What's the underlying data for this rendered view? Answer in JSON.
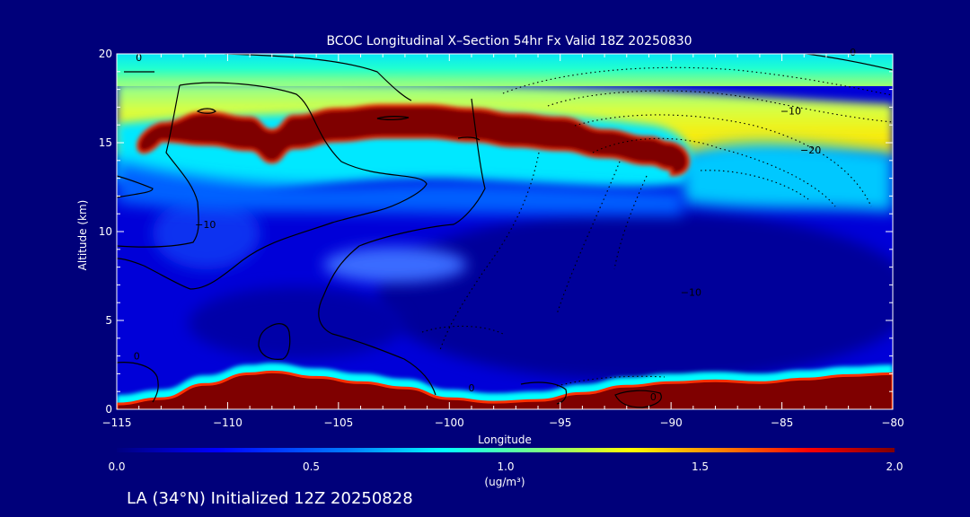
{
  "figure": {
    "title": "BCOC Longitudinal X–Section 54hr  Fx Valid 18Z 20250830",
    "footer": "LA (34°N) Initialized 12Z 20250828"
  },
  "chart_data": {
    "type": "heatmap",
    "title": "BCOC Longitudinal X–Section 54hr  Fx Valid 18Z 20250830",
    "xlabel": "Longitude",
    "ylabel": "Altitude (km)",
    "xlim": [
      -115,
      -80
    ],
    "ylim": [
      0,
      20
    ],
    "xticks": [
      -115,
      -110,
      -105,
      -100,
      -95,
      -90,
      -85,
      -80
    ],
    "xtick_labels": [
      "−115",
      "−110",
      "−105",
      "−100",
      "−95",
      "−90",
      "−85",
      "−80"
    ],
    "yticks": [
      0,
      5,
      10,
      15,
      20
    ],
    "ytick_labels": [
      "0",
      "5",
      "10",
      "15",
      "20"
    ],
    "colorbar": {
      "min": 0.0,
      "max": 2.0,
      "ticks": [
        0.0,
        0.5,
        1.0,
        1.5,
        2.0
      ],
      "tick_labels": [
        "0.0",
        "0.5",
        "1.0",
        "1.5",
        "2.0"
      ],
      "units": "(ug/m³)",
      "colormap": [
        "#00007f",
        "#0000ff",
        "#007fff",
        "#00ffff",
        "#7fff7f",
        "#ffff00",
        "#ff7f00",
        "#ff0000",
        "#7f0000"
      ]
    },
    "high_layer": {
      "core": [
        [
          -113,
          15.8
        ],
        [
          -111,
          15.6
        ],
        [
          -109,
          15.3
        ],
        [
          -108,
          14.6
        ],
        [
          -107,
          15.4
        ],
        [
          -105,
          15.8
        ],
        [
          -103,
          16.0
        ],
        [
          -101,
          16.0
        ],
        [
          -99,
          15.8
        ],
        [
          -97,
          15.5
        ],
        [
          -95,
          15.3
        ],
        [
          -93,
          14.9
        ],
        [
          -91,
          14.5
        ],
        [
          -90,
          14.2
        ]
      ],
      "core_value": 2.0,
      "upper_value": 1.1,
      "note_levels_km": [
        15.6,
        16.5
      ]
    },
    "surface_layer": {
      "top": [
        [
          -115,
          0.3
        ],
        [
          -113,
          0.6
        ],
        [
          -111,
          1.4
        ],
        [
          -109,
          2.0
        ],
        [
          -108,
          2.1
        ],
        [
          -106,
          1.8
        ],
        [
          -104,
          1.5
        ],
        [
          -102,
          1.2
        ],
        [
          -100,
          0.6
        ],
        [
          -98,
          0.4
        ],
        [
          -96,
          0.5
        ],
        [
          -94,
          0.9
        ],
        [
          -92,
          1.3
        ],
        [
          -90,
          1.5
        ],
        [
          -88,
          1.6
        ],
        [
          -86,
          1.5
        ],
        [
          -84,
          1.7
        ],
        [
          -82,
          1.9
        ],
        [
          -80,
          2.0
        ]
      ],
      "value": 2.0
    },
    "contour_labels": [
      {
        "text": "0",
        "lon": -114.0,
        "alt": 19.6
      },
      {
        "text": "0",
        "lon": -81.8,
        "alt": 19.9
      },
      {
        "text": "−10",
        "lon": -111.0,
        "alt": 10.2
      },
      {
        "text": "−10",
        "lon": -89.1,
        "alt": 6.4
      },
      {
        "text": "−10",
        "lon": -84.6,
        "alt": 16.6
      },
      {
        "text": "−20",
        "lon": -83.7,
        "alt": 14.4
      },
      {
        "text": "0",
        "lon": -90.8,
        "alt": 0.5
      },
      {
        "text": "0",
        "lon": -114.1,
        "alt": 2.8
      },
      {
        "text": "0",
        "lon": -99.0,
        "alt": 1.0
      }
    ]
  }
}
